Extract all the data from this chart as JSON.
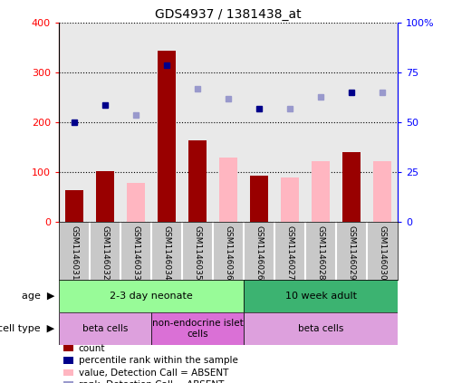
{
  "title": "GDS4937 / 1381438_at",
  "samples": [
    "GSM1146031",
    "GSM1146032",
    "GSM1146033",
    "GSM1146034",
    "GSM1146035",
    "GSM1146036",
    "GSM1146026",
    "GSM1146027",
    "GSM1146028",
    "GSM1146029",
    "GSM1146030"
  ],
  "count_values": [
    65,
    103,
    null,
    345,
    165,
    null,
    93,
    null,
    null,
    140,
    null
  ],
  "count_absent_values": [
    null,
    null,
    78,
    null,
    null,
    130,
    null,
    90,
    122,
    null,
    122
  ],
  "rank_values": [
    50,
    59,
    null,
    79,
    null,
    null,
    57,
    null,
    null,
    65,
    null
  ],
  "rank_absent_values": [
    null,
    null,
    54,
    null,
    67,
    62,
    null,
    57,
    63,
    null,
    65
  ],
  "ylim_left": [
    0,
    400
  ],
  "ylim_right": [
    0,
    100
  ],
  "yticks_left": [
    0,
    100,
    200,
    300,
    400
  ],
  "yticks_right": [
    0,
    25,
    50,
    75,
    100
  ],
  "ytick_labels_left": [
    "0",
    "100",
    "200",
    "300",
    "400"
  ],
  "ytick_labels_right": [
    "0",
    "25",
    "50",
    "75",
    "100%"
  ],
  "age_groups": [
    {
      "label": "2-3 day neonate",
      "start": 0,
      "end": 6,
      "color": "#98FB98"
    },
    {
      "label": "10 week adult",
      "start": 6,
      "end": 11,
      "color": "#3CB371"
    }
  ],
  "cell_type_groups": [
    {
      "label": "beta cells",
      "start": 0,
      "end": 3,
      "color": "#DDA0DD"
    },
    {
      "label": "non-endocrine islet\ncells",
      "start": 3,
      "end": 6,
      "color": "#DA70D6"
    },
    {
      "label": "beta cells",
      "start": 6,
      "end": 11,
      "color": "#DDA0DD"
    }
  ],
  "bar_color_present": "#990000",
  "bar_color_absent": "#FFB6C1",
  "dot_color_present": "#00008B",
  "dot_color_absent": "#9999CC",
  "legend_items": [
    {
      "label": "count",
      "color": "#990000"
    },
    {
      "label": "percentile rank within the sample",
      "color": "#00008B"
    },
    {
      "label": "value, Detection Call = ABSENT",
      "color": "#FFB6C1"
    },
    {
      "label": "rank, Detection Call = ABSENT",
      "color": "#9999CC"
    }
  ],
  "col_bg_color": "#C8C8C8"
}
